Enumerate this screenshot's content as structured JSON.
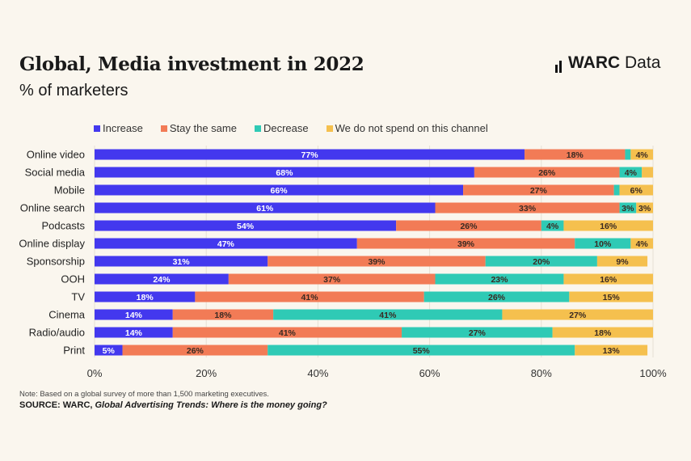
{
  "header": {
    "title": "Global, Media investment in 2022",
    "subtitle": "% of marketers",
    "logo_text_bold": "WARC",
    "logo_text": "Data"
  },
  "footer": {
    "note": "Note: Based on a global survey of more than 1,500 marketing executives.",
    "source_prefix": "SOURCE: WARC, ",
    "source_title": "Global Advertising Trends: Where is the money going?"
  },
  "chart_data": {
    "type": "bar",
    "orientation": "horizontal",
    "stacked": true,
    "categories": [
      "Online video",
      "Social media",
      "Mobile",
      "Online search",
      "Podcasts",
      "Online display",
      "Sponsorship",
      "OOH",
      "TV",
      "Cinema",
      "Radio/audio",
      "Print"
    ],
    "series": [
      {
        "name": "Increase",
        "color": "#4338ee",
        "values": [
          77,
          68,
          66,
          61,
          54,
          47,
          31,
          24,
          18,
          14,
          14,
          5
        ]
      },
      {
        "name": "Stay the same",
        "color": "#f27b56",
        "values": [
          18,
          26,
          27,
          33,
          26,
          39,
          39,
          37,
          41,
          18,
          41,
          26
        ]
      },
      {
        "name": "Decrease",
        "color": "#2fcab5",
        "values": [
          1,
          4,
          1,
          3,
          4,
          10,
          20,
          23,
          26,
          41,
          27,
          55
        ]
      },
      {
        "name": "We do not spend on this channel",
        "color": "#f5c04e",
        "values": [
          4,
          2,
          6,
          3,
          16,
          4,
          9,
          16,
          15,
          27,
          18,
          13
        ]
      }
    ],
    "xlim": [
      0,
      100
    ],
    "xticks": [
      "0%",
      "20%",
      "40%",
      "60%",
      "80%",
      "100%"
    ],
    "grid": "vertical",
    "legend": "top-left"
  }
}
